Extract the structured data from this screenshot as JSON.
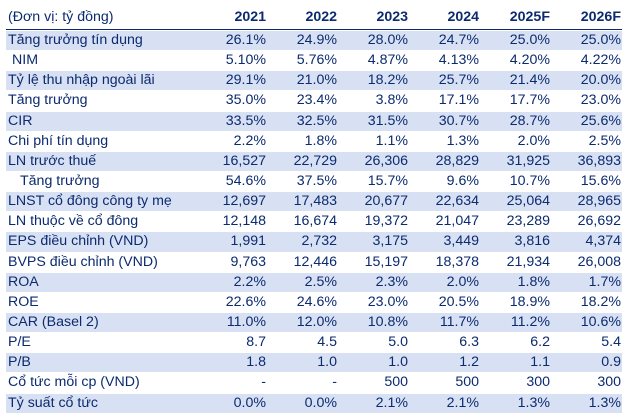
{
  "header": {
    "unit": "(Đơn vị: tỷ đồng)",
    "years": [
      "2021",
      "2022",
      "2023",
      "2024",
      "2025F",
      "2026F"
    ]
  },
  "rows": [
    {
      "label": "Tăng trưởng tín dụng",
      "values": [
        "26.1%",
        "24.9%",
        "28.0%",
        "24.7%",
        "25.0%",
        "25.0%"
      ]
    },
    {
      "label": "NIM",
      "values": [
        "5.10%",
        "5.76%",
        "4.87%",
        "4.13%",
        "4.20%",
        "4.22%"
      ]
    },
    {
      "label": "Tỷ lệ thu nhập ngoài lãi",
      "values": [
        "29.1%",
        "21.0%",
        "18.2%",
        "25.7%",
        "21.4%",
        "20.0%"
      ]
    },
    {
      "label": "Tăng trưởng",
      "values": [
        "35.0%",
        "23.4%",
        "3.8%",
        "17.1%",
        "17.7%",
        "23.0%"
      ]
    },
    {
      "label": "CIR",
      "values": [
        "33.5%",
        "32.5%",
        "31.5%",
        "30.7%",
        "28.7%",
        "25.6%"
      ]
    },
    {
      "label": "Chi phí tín dụng",
      "values": [
        "2.2%",
        "1.8%",
        "1.1%",
        "1.3%",
        "2.0%",
        "2.5%"
      ]
    },
    {
      "label": "LN trước thuế",
      "values": [
        "16,527",
        "22,729",
        "26,306",
        "28,829",
        "31,925",
        "36,893"
      ]
    },
    {
      "label": "Tăng trưởng",
      "values": [
        "54.6%",
        "37.5%",
        "15.7%",
        "9.6%",
        "10.7%",
        "15.6%"
      ]
    },
    {
      "label": "LNST cổ đông công ty mẹ",
      "values": [
        "12,697",
        "17,483",
        "20,677",
        "22,634",
        "25,064",
        "28,965"
      ]
    },
    {
      "label": "LN thuộc về cổ đông",
      "values": [
        "12,148",
        "16,674",
        "19,372",
        "21,047",
        "23,289",
        "26,692"
      ]
    },
    {
      "label": "EPS điều chỉnh (VND)",
      "values": [
        "1,991",
        "2,732",
        "3,175",
        "3,449",
        "3,816",
        "4,374"
      ]
    },
    {
      "label": "BVPS điều chỉnh (VND)",
      "values": [
        "9,763",
        "12,446",
        "15,197",
        "18,378",
        "21,934",
        "26,008"
      ]
    },
    {
      "label": "ROA",
      "values": [
        "2.2%",
        "2.5%",
        "2.3%",
        "2.0%",
        "1.8%",
        "1.7%"
      ]
    },
    {
      "label": "ROE",
      "values": [
        "22.6%",
        "24.6%",
        "23.0%",
        "20.5%",
        "18.9%",
        "18.2%"
      ]
    },
    {
      "label": "CAR (Basel 2)",
      "values": [
        "11.0%",
        "12.0%",
        "10.8%",
        "11.7%",
        "11.2%",
        "10.6%"
      ]
    },
    {
      "label": "P/E",
      "values": [
        "8.7",
        "4.5",
        "5.0",
        "6.3",
        "6.2",
        "5.4"
      ]
    },
    {
      "label": "P/B",
      "values": [
        "1.8",
        "1.0",
        "1.0",
        "1.2",
        "1.1",
        "0.9"
      ]
    },
    {
      "label": "Cổ tức mỗi cp (VND)",
      "values": [
        "-",
        "-",
        "500",
        "500",
        "300",
        "300"
      ]
    },
    {
      "label": "Tỷ suất cổ tức",
      "values": [
        "0.0%",
        "0.0%",
        "2.1%",
        "2.1%",
        "1.3%",
        "1.3%"
      ]
    }
  ],
  "colors": {
    "text": "#0b2a6f",
    "shaded_row": "#d8e1f3",
    "background": "#ffffff"
  }
}
